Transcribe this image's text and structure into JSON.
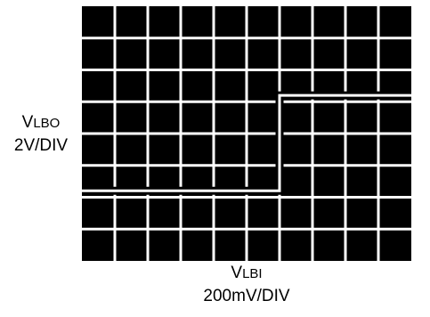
{
  "chart_data": {
    "type": "line",
    "title": "",
    "ylabel": {
      "main": "V",
      "sub": "LBO",
      "scale": "2V/DIV"
    },
    "xlabel": {
      "main": "V",
      "sub": "LBI",
      "scale": "200mV/DIV"
    },
    "grid": true,
    "divisions": {
      "x": 10,
      "y": 8
    },
    "xlim": [
      0,
      10
    ],
    "ylim": [
      0,
      8
    ],
    "series": [
      {
        "x": [
          0,
          6,
          6,
          10
        ],
        "y": [
          2.2,
          2.2,
          5.2,
          5.2
        ]
      }
    ],
    "colors": {
      "screen": "#000000",
      "grid": "#ffffff",
      "trace": "#ffffff",
      "background": "#ffffff"
    }
  }
}
